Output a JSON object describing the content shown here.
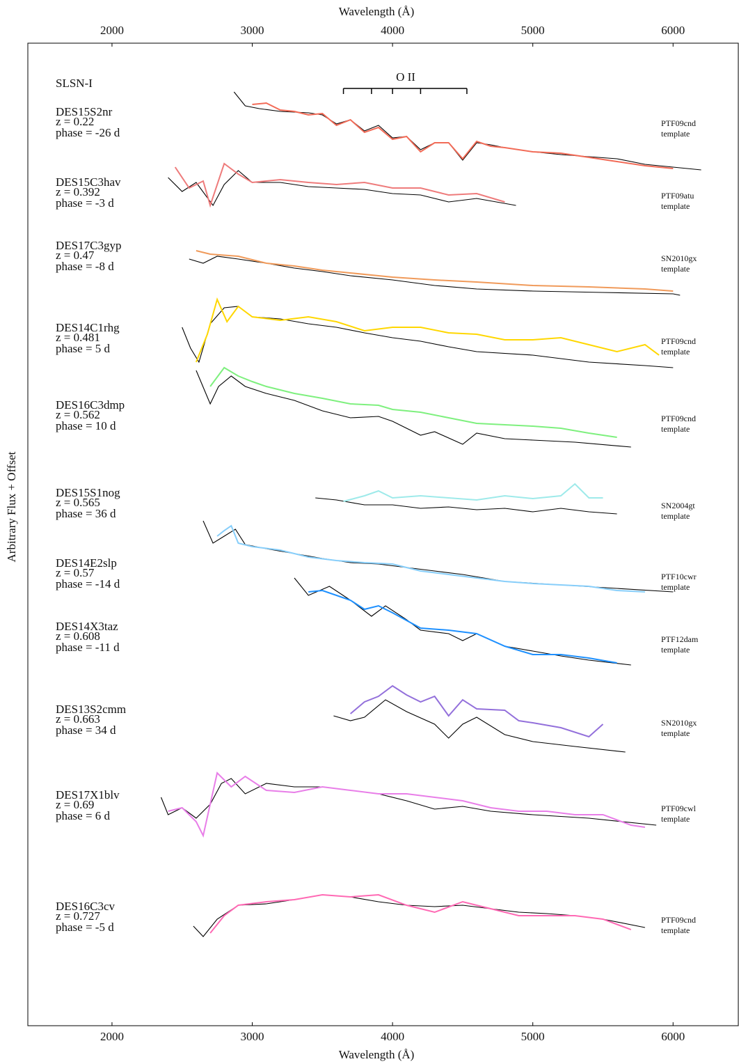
{
  "chart_data": {
    "type": "line",
    "x_label": "Wavelength (Å)",
    "y_label": "Arbitrary Flux + Offset",
    "class_label": "SLSN-I",
    "xlim": [
      1400,
      6470
    ],
    "xticks": [
      2000,
      3000,
      4000,
      5000,
      6000
    ],
    "ylim": [
      0,
      141.1
    ],
    "o_ii": {
      "label": "O II",
      "lines": [
        3650,
        3850,
        4000,
        4200,
        4530
      ]
    },
    "template_color": "#000000",
    "spectra": [
      {
        "name": "DES15S2nr",
        "z": "z = 0.22",
        "phase": "phase = -26 d",
        "template": "PTF09cnd",
        "template_word": "template",
        "color": "#f26b57",
        "x": [
          3000,
          3100,
          3200,
          3300,
          3400,
          3500,
          3600,
          3700,
          3800,
          3900,
          4000,
          4100,
          4200,
          4300,
          4400,
          4500,
          4600,
          4700,
          4800,
          5000,
          5200,
          5400,
          5600,
          5800,
          6000
        ],
        "values": [
          132.3,
          132.5,
          131.5,
          131.3,
          130.8,
          131.0,
          129.3,
          130.1,
          128.3,
          129.0,
          127.3,
          127.7,
          125.5,
          126.8,
          126.8,
          124.5,
          127.0,
          126.3,
          126.1,
          125.5,
          125.3,
          124.7,
          124.1,
          123.5,
          123.1
        ],
        "template_x": [
          2870,
          2950,
          3050,
          3200,
          3400,
          3500,
          3600,
          3700,
          3800,
          3900,
          4000,
          4100,
          4200,
          4300,
          4400,
          4500,
          4600,
          4700,
          4800,
          5000,
          5200,
          5400,
          5600,
          5800,
          6000,
          6200
        ],
        "template_values": [
          134.1,
          132.1,
          131.7,
          131.3,
          131.1,
          130.8,
          129.5,
          130.1,
          128.5,
          129.3,
          127.5,
          127.7,
          125.8,
          126.8,
          126.8,
          124.3,
          126.8,
          126.5,
          126.1,
          125.5,
          125.1,
          124.8,
          124.5,
          123.7,
          123.3,
          122.9
        ]
      },
      {
        "name": "DES15C3hav",
        "z": "z = 0.392",
        "phase": "phase = -3 d",
        "template": "PTF09atu",
        "template_word": "template",
        "color": "#ee7b7b",
        "x": [
          2450,
          2550,
          2650,
          2700,
          2800,
          2900,
          3000,
          3200,
          3400,
          3600,
          3800,
          4000,
          4200,
          4400,
          4600,
          4800
        ],
        "values": [
          123.3,
          120.3,
          121.3,
          117.8,
          123.8,
          122.3,
          121.1,
          121.5,
          121.1,
          120.8,
          121.1,
          120.3,
          120.3,
          119.3,
          119.5,
          118.3
        ],
        "template_x": [
          2400,
          2500,
          2600,
          2720,
          2800,
          2900,
          3000,
          3200,
          3400,
          3600,
          3800,
          4000,
          4200,
          4400,
          4600,
          4880
        ],
        "template_values": [
          121.8,
          119.8,
          121.1,
          117.8,
          120.8,
          122.8,
          121.1,
          121.1,
          120.5,
          120.3,
          120.1,
          119.5,
          119.3,
          118.3,
          118.8,
          117.8
        ]
      },
      {
        "name": "DES17C3gyp",
        "z": "z = 0.47",
        "phase": "phase = -8 d",
        "template": "SN2010gx",
        "template_word": "template",
        "color": "#f09a5a",
        "x": [
          2600,
          2700,
          2900,
          3100,
          3300,
          3500,
          3700,
          4000,
          4300,
          4600,
          5000,
          5400,
          5800,
          6000
        ],
        "values": [
          111.3,
          110.8,
          110.5,
          109.5,
          109.1,
          108.5,
          108.1,
          107.5,
          107.1,
          106.8,
          106.3,
          106.1,
          105.8,
          105.5
        ],
        "template_x": [
          2550,
          2650,
          2750,
          2900,
          3100,
          3300,
          3500,
          3700,
          4000,
          4300,
          4600,
          5000,
          5500,
          6000,
          6050
        ],
        "template_values": [
          110.1,
          109.5,
          110.5,
          110.1,
          109.5,
          108.8,
          108.3,
          107.7,
          107.1,
          106.3,
          105.8,
          105.5,
          105.3,
          105.1,
          104.9
        ]
      },
      {
        "name": "DES14C1rhg",
        "z": "z = 0.481",
        "phase": "phase = 5 d",
        "template": "PTF09cnd",
        "template_word": "template",
        "color": "#ffd700",
        "x": [
          2600,
          2680,
          2750,
          2820,
          2900,
          3000,
          3200,
          3400,
          3600,
          3800,
          4000,
          4200,
          4400,
          4600,
          4800,
          5000,
          5200,
          5400,
          5600,
          5800,
          5900
        ],
        "values": [
          95.3,
          99.3,
          104.3,
          101.1,
          103.3,
          101.8,
          101.3,
          101.8,
          101.1,
          99.8,
          100.3,
          100.3,
          99.5,
          99.3,
          98.5,
          98.5,
          98.8,
          97.8,
          96.8,
          97.8,
          96.3
        ],
        "template_x": [
          2500,
          2560,
          2620,
          2700,
          2800,
          2900,
          3000,
          3200,
          3400,
          3600,
          3800,
          4000,
          4200,
          4400,
          4600,
          5000,
          5400,
          5800,
          6000
        ],
        "template_values": [
          100.3,
          97.3,
          95.3,
          100.8,
          103.1,
          103.3,
          101.8,
          101.5,
          100.8,
          100.3,
          99.5,
          98.8,
          98.3,
          97.5,
          96.8,
          96.3,
          95.3,
          94.8,
          94.5
        ]
      },
      {
        "name": "DES16C3dmp",
        "z": "z = 0.562",
        "phase": "phase = 10 d",
        "template": "PTF09cnd",
        "template_word": "template",
        "color": "#7ef07e",
        "x": [
          2700,
          2800,
          2900,
          3000,
          3100,
          3300,
          3500,
          3700,
          3900,
          4000,
          4200,
          4400,
          4600,
          4800,
          5000,
          5200,
          5400,
          5600
        ],
        "values": [
          91.8,
          94.5,
          93.3,
          92.5,
          91.8,
          90.8,
          90.1,
          89.3,
          89.1,
          88.5,
          88.1,
          87.3,
          86.5,
          86.3,
          86.1,
          85.8,
          85.1,
          84.5
        ],
        "template_x": [
          2600,
          2700,
          2760,
          2850,
          2950,
          3100,
          3300,
          3500,
          3700,
          3900,
          4000,
          4200,
          4300,
          4500,
          4600,
          4800,
          5000,
          5300,
          5700
        ],
        "template_values": [
          94.1,
          89.3,
          91.8,
          93.3,
          91.8,
          90.8,
          89.8,
          88.3,
          87.3,
          87.5,
          86.8,
          84.8,
          85.3,
          83.5,
          85.1,
          84.3,
          84.1,
          83.8,
          83.1
        ]
      },
      {
        "name": "DES15S1nog",
        "z": "z = 0.565",
        "phase": "phase = 36 d",
        "template": "SN2004gt",
        "template_word": "template",
        "color": "#9eeaea",
        "x": [
          3650,
          3800,
          3900,
          4000,
          4200,
          4400,
          4600,
          4800,
          5000,
          5200,
          5300,
          5400,
          5500
        ],
        "values": [
          75.3,
          76.1,
          76.8,
          75.8,
          76.1,
          75.8,
          75.5,
          76.1,
          75.7,
          76.1,
          77.8,
          75.8,
          75.8
        ],
        "template_x": [
          3450,
          3600,
          3800,
          4000,
          4200,
          4400,
          4600,
          4800,
          5000,
          5200,
          5400,
          5600
        ],
        "template_values": [
          75.8,
          75.5,
          74.8,
          74.8,
          74.3,
          74.5,
          74.1,
          74.3,
          73.8,
          74.3,
          73.8,
          73.5
        ]
      },
      {
        "name": "DES14E2slp",
        "z": "z = 0.57",
        "phase": "phase = -14 d",
        "template": "PTF10cwr",
        "template_word": "template",
        "color": "#87cefa",
        "x": [
          2750,
          2800,
          2850,
          2900,
          3000,
          3200,
          3400,
          3600,
          3800,
          4000,
          4200,
          4400,
          4600,
          4800,
          5000,
          5200,
          5400,
          5600,
          5800
        ],
        "values": [
          70.3,
          71.1,
          71.8,
          69.3,
          68.8,
          68.3,
          67.3,
          66.8,
          66.5,
          66.3,
          65.3,
          64.8,
          64.3,
          63.8,
          63.5,
          63.3,
          63.1,
          62.5,
          62.3
        ],
        "template_x": [
          2650,
          2720,
          2800,
          2880,
          2950,
          3100,
          3300,
          3500,
          3700,
          3900,
          4100,
          4300,
          4500,
          4800,
          5200,
          5600,
          6000
        ],
        "template_values": [
          72.5,
          69.3,
          70.3,
          71.3,
          69.1,
          68.5,
          67.8,
          67.1,
          66.5,
          66.3,
          65.8,
          65.3,
          64.8,
          63.8,
          63.3,
          62.8,
          62.3
        ]
      },
      {
        "name": "DES14X3taz",
        "z": "z = 0.608",
        "phase": "phase = -11 d",
        "template": "PTF12dam",
        "template_word": "template",
        "color": "#1e90ff",
        "x": [
          3400,
          3500,
          3600,
          3700,
          3800,
          3900,
          4000,
          4200,
          4400,
          4600,
          4800,
          5000,
          5200,
          5400,
          5600
        ],
        "values": [
          62.3,
          62.5,
          61.8,
          61.1,
          59.8,
          60.3,
          59.3,
          57.1,
          56.8,
          56.3,
          54.5,
          53.3,
          53.3,
          52.8,
          52.1
        ],
        "template_x": [
          3300,
          3400,
          3550,
          3700,
          3850,
          3950,
          4100,
          4200,
          4400,
          4500,
          4600,
          4800,
          5000,
          5200,
          5400,
          5700
        ],
        "template_values": [
          64.3,
          61.8,
          63.1,
          61.1,
          58.8,
          60.3,
          58.3,
          56.8,
          56.3,
          55.3,
          56.3,
          54.5,
          53.8,
          53.1,
          52.5,
          51.8
        ]
      },
      {
        "name": "DES13S2cmm",
        "z": "z = 0.663",
        "phase": "phase = 34 d",
        "template": "SN2010gx",
        "template_word": "template",
        "color": "#9370db",
        "x": [
          3700,
          3800,
          3900,
          4000,
          4100,
          4200,
          4300,
          4400,
          4500,
          4600,
          4800,
          4900,
          5000,
          5200,
          5400,
          5500
        ],
        "values": [
          44.8,
          46.5,
          47.3,
          48.8,
          47.5,
          46.5,
          47.3,
          44.5,
          46.8,
          45.5,
          45.3,
          43.8,
          43.5,
          42.8,
          41.5,
          43.3
        ],
        "template_x": [
          3580,
          3700,
          3800,
          3950,
          4100,
          4300,
          4400,
          4500,
          4600,
          4800,
          5000,
          5300,
          5660
        ],
        "template_values": [
          44.5,
          43.8,
          44.3,
          46.8,
          45.1,
          43.3,
          41.3,
          43.3,
          44.3,
          41.8,
          40.8,
          40.1,
          39.3
        ]
      },
      {
        "name": "DES17X1blv",
        "z": "z = 0.69",
        "phase": "phase = 6 d",
        "template": "PTF09cwl",
        "template_word": "template",
        "color": "#e87ee8",
        "x": [
          2400,
          2500,
          2600,
          2650,
          2750,
          2850,
          2950,
          3100,
          3300,
          3500,
          3700,
          3900,
          4100,
          4300,
          4500,
          4700,
          4900,
          5100,
          5300,
          5500,
          5700,
          5800
        ],
        "values": [
          30.8,
          31.3,
          29.3,
          27.3,
          36.3,
          34.3,
          35.8,
          33.8,
          33.5,
          34.3,
          33.8,
          33.3,
          33.3,
          32.8,
          32.3,
          31.3,
          30.8,
          30.8,
          30.3,
          30.3,
          28.8,
          28.5
        ],
        "template_x": [
          2350,
          2400,
          2500,
          2600,
          2700,
          2780,
          2850,
          2950,
          3100,
          3300,
          3500,
          3700,
          3900,
          4100,
          4300,
          4500,
          4700,
          5000,
          5400,
          5880
        ],
        "template_values": [
          32.8,
          30.3,
          31.3,
          29.8,
          31.8,
          34.8,
          35.5,
          33.3,
          34.8,
          34.3,
          34.3,
          33.8,
          33.3,
          32.3,
          31.1,
          31.5,
          30.8,
          30.3,
          29.8,
          28.8
        ]
      },
      {
        "name": "DES16C3cv",
        "z": "z = 0.727",
        "phase": "phase = -5 d",
        "template": "PTF09cnd",
        "template_word": "template",
        "color": "#ff69b4",
        "x": [
          2700,
          2800,
          2900,
          3100,
          3300,
          3500,
          3700,
          3900,
          4100,
          4300,
          4500,
          4700,
          4900,
          5100,
          5300,
          5500,
          5700
        ],
        "values": [
          13.3,
          15.8,
          17.3,
          17.8,
          18.1,
          18.8,
          18.5,
          18.8,
          17.3,
          16.3,
          17.8,
          16.8,
          15.8,
          15.8,
          15.8,
          15.3,
          13.8
        ],
        "template_x": [
          2580,
          2650,
          2750,
          2900,
          3100,
          3300,
          3500,
          3700,
          3900,
          4100,
          4300,
          4500,
          4700,
          4900,
          5100,
          5300,
          5500,
          5800
        ],
        "template_values": [
          14.3,
          12.8,
          15.3,
          17.3,
          17.5,
          18.1,
          18.8,
          18.5,
          17.8,
          17.3,
          17.1,
          17.3,
          16.8,
          16.3,
          16.1,
          15.8,
          15.3,
          14.1
        ]
      }
    ]
  }
}
